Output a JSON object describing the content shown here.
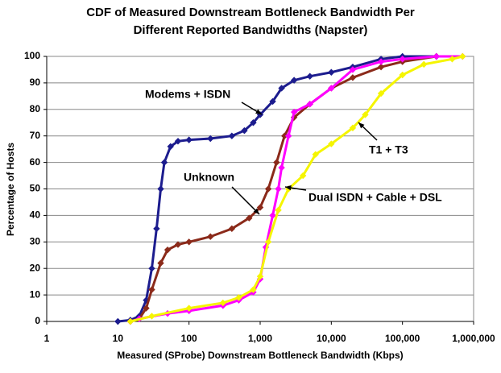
{
  "chart_data": {
    "type": "line",
    "title": [
      "CDF of Measured Downstream Bottleneck Bandwidth Per",
      "Different Reported Bandwidths (Napster)"
    ],
    "x_label": "Measured (SProbe) Downstream Bottleneck Bandwidth (Kbps)",
    "y_label": "Percentage of Hosts",
    "xscale": "log",
    "xlim": [
      1,
      1000000
    ],
    "xticks": [
      1,
      10,
      100,
      {
        "value": 1000,
        "label": "1,000"
      },
      {
        "value": 10000,
        "label": "10,000"
      },
      {
        "value": 100000,
        "label": "100,000"
      },
      {
        "value": 1000000,
        "label": "1,000,000"
      }
    ],
    "ylim": [
      0,
      100
    ],
    "yticks": [
      0,
      10,
      20,
      30,
      40,
      50,
      60,
      70,
      80,
      90,
      100
    ],
    "grid": true,
    "series": [
      {
        "name": "Modems + ISDN",
        "color": "#1c1c8e",
        "x": [
          10,
          15,
          20,
          25,
          30,
          35,
          40,
          45,
          55,
          70,
          100,
          200,
          400,
          600,
          800,
          1000,
          1500,
          2000,
          3000,
          5000,
          10000,
          20000,
          50000,
          100000,
          300000
        ],
        "values": [
          0,
          0.5,
          2,
          8,
          20,
          35,
          50,
          60,
          66,
          68,
          68.5,
          69,
          70,
          72,
          75,
          78,
          83,
          88,
          91,
          92.5,
          94,
          96,
          99,
          100,
          100
        ]
      },
      {
        "name": "Unknown",
        "color": "#8b2a1a",
        "x": [
          15,
          20,
          25,
          30,
          40,
          50,
          70,
          100,
          200,
          400,
          700,
          1000,
          1300,
          1700,
          2200,
          3000,
          5000,
          10000,
          20000,
          50000,
          100000,
          300000
        ],
        "values": [
          0,
          1,
          5,
          12,
          22,
          27,
          29,
          30,
          32,
          35,
          39,
          43,
          50,
          60,
          70,
          77,
          82,
          88,
          92,
          96,
          98,
          100
        ]
      },
      {
        "name": "Dual ISDN + Cable + DSL",
        "color": "#ff00ff",
        "x": [
          15,
          20,
          50,
          100,
          300,
          500,
          800,
          1000,
          1200,
          1500,
          1800,
          2000,
          2500,
          3000,
          5000,
          10000,
          20000,
          50000,
          100000,
          300000,
          700000
        ],
        "values": [
          0,
          1,
          3,
          4,
          6,
          8,
          11,
          16,
          28,
          40,
          50,
          58,
          70,
          79,
          82,
          88,
          95,
          98,
          99,
          100,
          100
        ]
      },
      {
        "name": "T1 + T3",
        "color": "#f5f500",
        "x": [
          15,
          30,
          100,
          300,
          500,
          800,
          1000,
          1300,
          1800,
          2500,
          4000,
          6000,
          10000,
          20000,
          30000,
          50000,
          100000,
          200000,
          500000,
          700000
        ],
        "values": [
          0,
          2,
          5,
          7,
          9,
          12,
          17,
          30,
          42,
          50,
          55,
          63,
          67,
          73,
          78,
          86,
          93,
          97,
          99,
          100
        ]
      }
    ]
  }
}
